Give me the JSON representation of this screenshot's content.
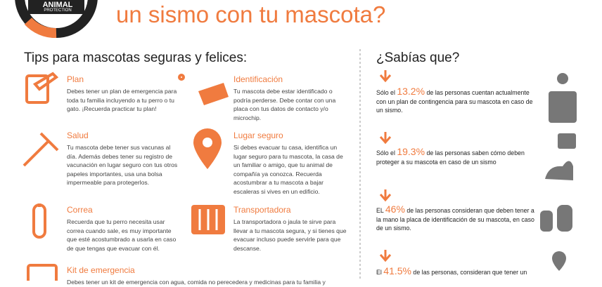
{
  "header": {
    "logo": "ANIMAL",
    "logo_sub": "PROTECTION",
    "title": "un sismo con tu mascota?"
  },
  "tips": {
    "heading": "Tips para mascotas seguras y felices:",
    "items": [
      {
        "title": "Plan",
        "text": "Debes tener un plan de emergencia para toda tu familia incluyendo a tu perro o tu gato. ¡Recuerda practicar tu plan!"
      },
      {
        "title": "Identificación",
        "text": "Tu mascota debe estar identificado o podría perderse. Debe contar con una placa con tus datos de contacto y/o microchip."
      },
      {
        "title": "Salud",
        "text": "Tu mascota debe tener sus vacunas al día. Además debes tener su registro de vacunación en lugar seguro con tus otros papeles importantes, usa una bolsa impermeable para protegerlos."
      },
      {
        "title": "Lugar seguro",
        "text": "Si debes evacuar tu casa, identifica un lugar seguro para tu mascota, la casa de un familiar o amigo, que tu animal de compañía ya conozca. Recuerda acostumbrar a tu mascota a bajar escaleras si vives en un edificio."
      },
      {
        "title": "Correa",
        "text": "Recuerda que tu perro necesita usar correa cuando sale, es muy importante que esté acostumbrado a usarla en caso de que tengas que evacuar con él."
      },
      {
        "title": "Transportadora",
        "text": "La transportadora o jaula te sirve para llevar a tu mascota segura, y si tienes que evacuar incluso puede servirle para que descanse."
      },
      {
        "title": "Kit de emergencia",
        "text": "Debes tener un kit de emergencia con agua, comida no perecedera y medicinas para tu familia y"
      }
    ]
  },
  "facts": {
    "heading": "¿Sabías que?",
    "items": [
      {
        "pre": "Sólo el ",
        "pct": "13.2%",
        "post": " de las personas cuentan actualmente con un plan de contingencia para su mascota en caso de un sismo."
      },
      {
        "pre": "Sólo el ",
        "pct": "19.3%",
        "post": " de las personas saben cómo deben proteger a su mascota en caso de un sismo"
      },
      {
        "pre": "EL ",
        "pct": "46%",
        "post": " de las personas consideran que deben tener a la mano la placa de identificación de su mascota, en caso de un sismo."
      },
      {
        "pre": "El ",
        "pct": "41.5%",
        "post": " de las personas, consideran que tener un"
      }
    ]
  }
}
